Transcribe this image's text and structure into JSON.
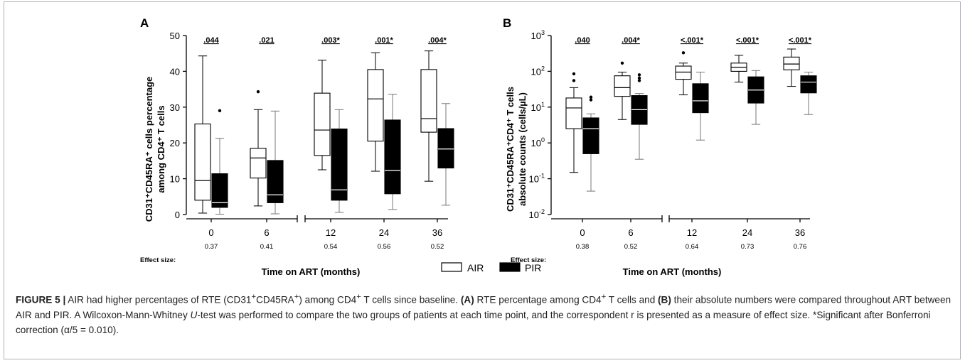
{
  "legend": {
    "air": "AIR",
    "pir": "PIR"
  },
  "caption": {
    "label": "FIGURE 5 |",
    "s1": " AIR had higher percentages of RTE (CD31",
    "s1sup": "+",
    "s2": "CD45RA",
    "s2sup": "+",
    "s3": ") among CD4",
    "s3sup": "+",
    "s4": " T cells since baseline. ",
    "a_label": "(A)",
    "s5": " RTE percentage among CD4",
    "s5sup": "+",
    "s6": " T cells and ",
    "b_label": "(B)",
    "s7": " their absolute numbers were compared throughout ART between AIR and PIR. A Wilcoxon-Mann-Whitney ",
    "u": "U",
    "s8": "-test was performed to compare the two groups of patients at each time point, and the correspondent r is presented as a measure of effect size. *Significant after Bonferroni correction (α/5 = 0.010)."
  },
  "chart_data": [
    {
      "panel": "A",
      "type": "box",
      "ylabel_line1": "CD31⁺CD45RA⁺ cells percentage",
      "ylabel_line2": "among CD4⁺ T cells",
      "xlabel": "Time on ART (months)",
      "ylim": [
        0,
        50
      ],
      "yticks": [
        0,
        10,
        20,
        30,
        40,
        50
      ],
      "categories": [
        "0",
        "6",
        "12",
        "24",
        "36"
      ],
      "axis_break_after": "6",
      "p_values": [
        ".044",
        ".021",
        ".003*",
        ".001*",
        ".004*"
      ],
      "effect_size_label": "Effect size:",
      "effect_sizes": [
        "0.37",
        "0.41",
        "0.54",
        "0.56",
        "0.52"
      ],
      "series": [
        {
          "name": "AIR",
          "color": "#ffffff",
          "boxes": [
            {
              "min": 0.4,
              "q1": 4,
              "median": 9.5,
              "q3": 25.3,
              "max": 44.3,
              "outliers": []
            },
            {
              "min": 2.4,
              "q1": 10.2,
              "median": 15.8,
              "q3": 18.5,
              "max": 29.3,
              "outliers": [
                34.3
              ]
            },
            {
              "min": 12.5,
              "q1": 16.5,
              "median": 23.6,
              "q3": 33.9,
              "max": 43.1,
              "outliers": []
            },
            {
              "min": 12.1,
              "q1": 20.5,
              "median": 32.3,
              "q3": 40.5,
              "max": 45.2,
              "outliers": []
            },
            {
              "min": 9.3,
              "q1": 23,
              "median": 26.8,
              "q3": 40.5,
              "max": 45.7,
              "outliers": []
            }
          ]
        },
        {
          "name": "PIR",
          "color": "#000000",
          "boxes": [
            {
              "min": 0.1,
              "q1": 2,
              "median": 3.3,
              "q3": 11.4,
              "max": 21.3,
              "outliers": [
                29
              ]
            },
            {
              "min": 0.2,
              "q1": 3.3,
              "median": 5.5,
              "q3": 15.1,
              "max": 28.9,
              "outliers": []
            },
            {
              "min": 0.6,
              "q1": 4,
              "median": 6.9,
              "q3": 23.9,
              "max": 29.3,
              "outliers": []
            },
            {
              "min": 1.4,
              "q1": 5.8,
              "median": 12.3,
              "q3": 26.4,
              "max": 33.6,
              "outliers": []
            },
            {
              "min": 2.6,
              "q1": 13,
              "median": 18.3,
              "q3": 24,
              "max": 31,
              "outliers": []
            }
          ]
        }
      ]
    },
    {
      "panel": "B",
      "type": "box",
      "yscale": "log",
      "ylabel_line1": "CD31⁺CD45RA⁺CD4⁺ T cells",
      "ylabel_line2": "absolute counts (cells/µL)",
      "xlabel": "Time on ART (months)",
      "ylim": [
        0.01,
        1000
      ],
      "yticks": [
        "10⁻²",
        "10⁻¹",
        "10⁰",
        "10¹",
        "10²",
        "10³"
      ],
      "categories": [
        "0",
        "6",
        "12",
        "24",
        "36"
      ],
      "axis_break_after": "6",
      "p_values": [
        ".040",
        ".004*",
        "<.001*",
        "<.001*",
        "<.001*"
      ],
      "effect_size_label": "Effect size:",
      "effect_sizes": [
        "0.38",
        "0.52",
        "0.64",
        "0.73",
        "0.76"
      ],
      "series": [
        {
          "name": "AIR",
          "color": "#ffffff",
          "boxes": [
            {
              "min": 0.15,
              "q1": 2.5,
              "median": 9.5,
              "q3": 18,
              "max": 35,
              "outliers": [
                55,
                85
              ]
            },
            {
              "min": 4.5,
              "q1": 20,
              "median": 35,
              "q3": 75,
              "max": 95,
              "outliers": [
                170
              ]
            },
            {
              "min": 22,
              "q1": 60,
              "median": 95,
              "q3": 140,
              "max": 170,
              "outliers": [
                330
              ]
            },
            {
              "min": 50,
              "q1": 100,
              "median": 130,
              "q3": 170,
              "max": 280,
              "outliers": []
            },
            {
              "min": 38,
              "q1": 110,
              "median": 160,
              "q3": 250,
              "max": 420,
              "outliers": []
            }
          ]
        },
        {
          "name": "PIR",
          "color": "#000000",
          "boxes": [
            {
              "min": 0.045,
              "q1": 0.5,
              "median": 2.5,
              "q3": 5,
              "max": 6.5,
              "outliers": [
                16,
                19
              ]
            },
            {
              "min": 0.35,
              "q1": 3.3,
              "median": 8.5,
              "q3": 21,
              "max": 24,
              "outliers": [
                55,
                65,
                80
              ]
            },
            {
              "min": 1.2,
              "q1": 7,
              "median": 15,
              "q3": 45,
              "max": 95,
              "outliers": []
            },
            {
              "min": 3.3,
              "q1": 13,
              "median": 30,
              "q3": 70,
              "max": 105,
              "outliers": []
            },
            {
              "min": 6.2,
              "q1": 25,
              "median": 50,
              "q3": 75,
              "max": 95,
              "outliers": []
            }
          ]
        }
      ]
    }
  ]
}
